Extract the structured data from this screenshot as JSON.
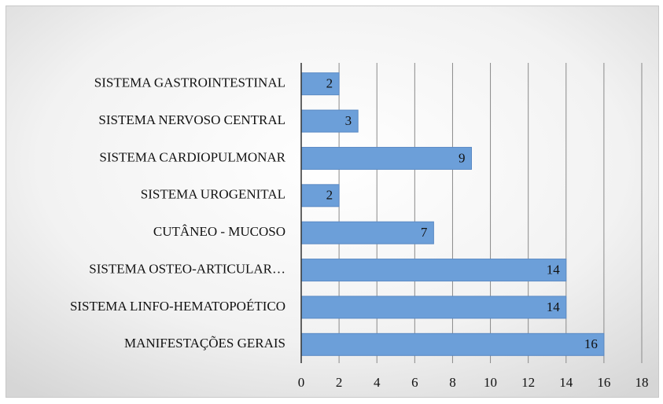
{
  "chart_data": {
    "type": "hbar",
    "categories": [
      "SISTEMA GASTROINTESTINAL",
      "SISTEMA NERVOSO CENTRAL",
      "SISTEMA CARDIOPULMONAR",
      "SISTEMA UROGENITAL",
      "CUTÂNEO - MUCOSO",
      "SISTEMA OSTEO-ARTICULAR…",
      "SISTEMA LINFO-HEMATOPOÉTICO",
      "MANIFESTAÇÕES GERAIS"
    ],
    "values": [
      2,
      3,
      9,
      2,
      7,
      14,
      14,
      16
    ],
    "color": "#6c9fd9",
    "xlim": [
      0,
      18
    ],
    "xticks": [
      0,
      2,
      4,
      6,
      8,
      10,
      12,
      14,
      16,
      18
    ],
    "grid": true
  }
}
